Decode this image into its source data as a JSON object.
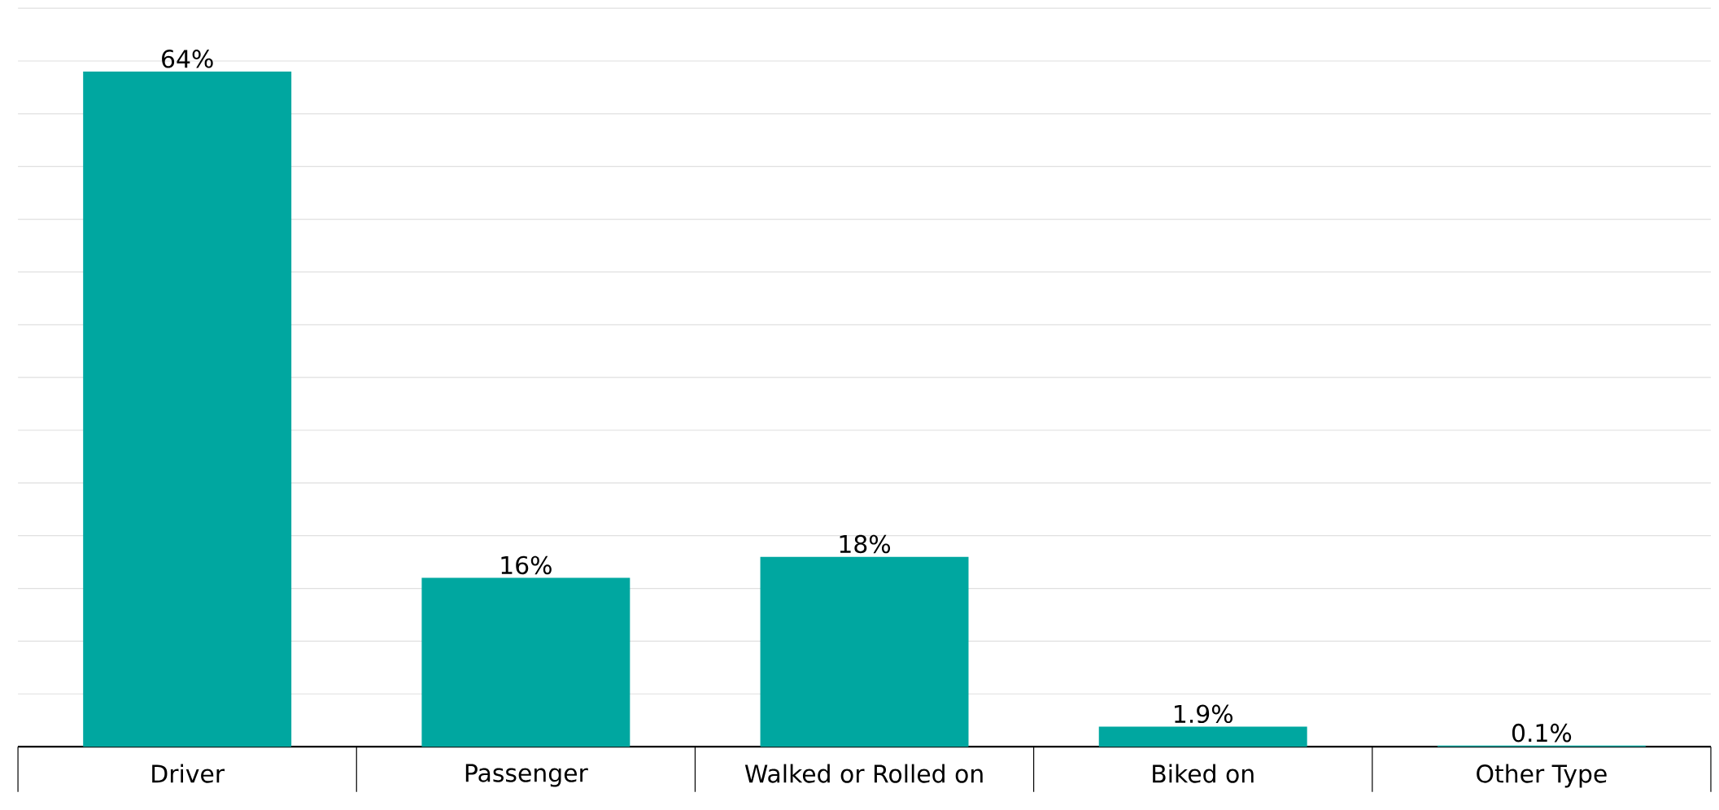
{
  "chart_data": {
    "type": "bar",
    "categories": [
      "Driver",
      "Passenger",
      "Walked or Rolled on",
      "Biked on",
      "Other Type"
    ],
    "values": [
      64,
      16,
      18,
      1.9,
      0.1
    ],
    "value_labels": [
      "64%",
      "16%",
      "18%",
      "1.9%",
      "0.1%"
    ],
    "color": "#00a7a0",
    "grid": "y",
    "tick_labels": "x"
  }
}
